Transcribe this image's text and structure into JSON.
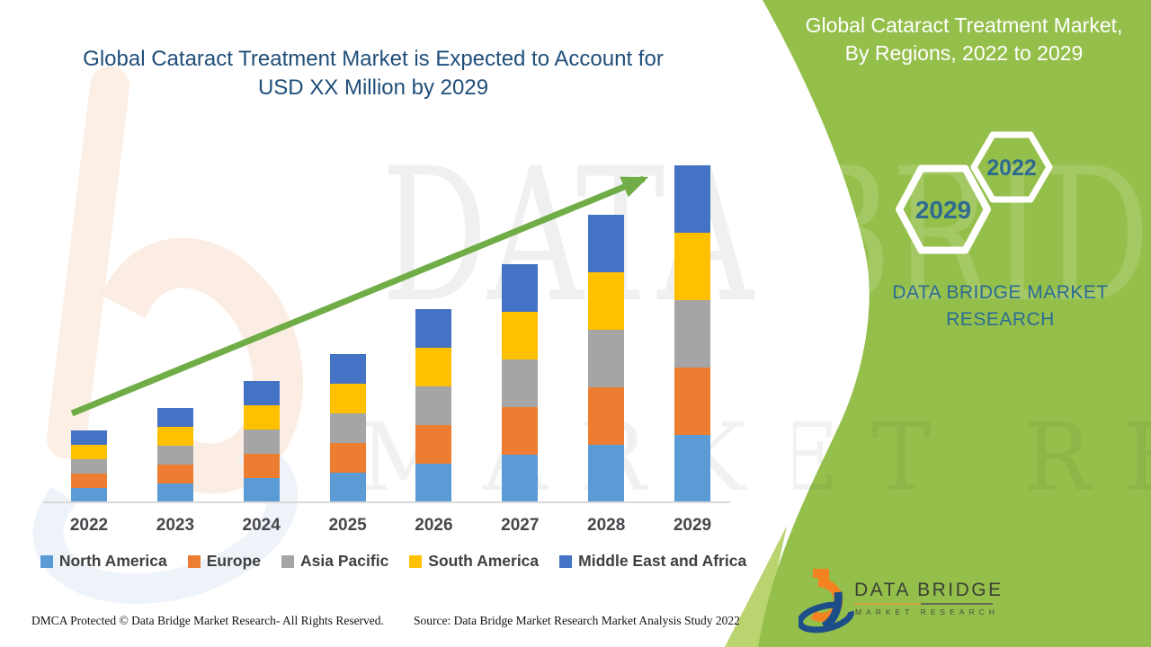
{
  "title": {
    "line1": "Global Cataract Treatment Market is Expected to Account for",
    "line2": "USD XX Million by 2029"
  },
  "panel": {
    "bg_color": "#95BF4B",
    "bg_color_light": "#BAD470",
    "heading": {
      "line1": "Global Cataract Treatment Market,",
      "line2": "By Regions, 2022 to 2029"
    },
    "hexagons": [
      {
        "label": "2029"
      },
      {
        "label": "2022"
      }
    ],
    "brand": {
      "line1": "DATA BRIDGE MARKET",
      "line2": "RESEARCH"
    },
    "logo": {
      "name": "DATA BRIDGE",
      "sub": "MARKET RESEARCH",
      "orange": "#F58220",
      "blue": "#1D4E89"
    }
  },
  "watermarks": {
    "line1": "DATA BRIDGE",
    "line2": "MARKET RESEARCH"
  },
  "footer": {
    "left": "DMCA Protected © Data Bridge Market Research- All Rights Reserved.",
    "source": "Source: Data Bridge Market Research Market Analysis Study 2022"
  },
  "chart_data": {
    "type": "bar",
    "stacked": true,
    "title": "Global Cataract Treatment Market is Expected to Account for USD XX Million by 2029",
    "categories": [
      "2022",
      "2023",
      "2024",
      "2025",
      "2026",
      "2027",
      "2028",
      "2029"
    ],
    "series": [
      {
        "name": "North America",
        "color": "#5B9BD5",
        "values": [
          16,
          21,
          27,
          33,
          43,
          53,
          64,
          75
        ]
      },
      {
        "name": "Europe",
        "color": "#ED7D31",
        "values": [
          16,
          21,
          27,
          33,
          43,
          53,
          64,
          75
        ]
      },
      {
        "name": "Asia Pacific",
        "color": "#A5A5A5",
        "values": [
          16,
          21,
          27,
          33,
          43,
          53,
          64,
          75
        ]
      },
      {
        "name": "South America",
        "color": "#FFC000",
        "values": [
          16,
          21,
          27,
          33,
          43,
          53,
          64,
          75
        ]
      },
      {
        "name": "Middle East and Africa",
        "color": "#4472C4",
        "values": [
          16,
          21,
          27,
          33,
          43,
          53,
          64,
          75
        ]
      }
    ],
    "totals_estimate": [
      80,
      105,
      135,
      165,
      215,
      265,
      320,
      375
    ],
    "value_axis": {
      "visible": false,
      "note": "No y-axis shown; segment values are relative estimates in unlabeled 'USD XX Million' units"
    },
    "category_axis": {
      "visible": true,
      "line_color": "#D9D9D9"
    },
    "grid": false,
    "legend_position": "bottom",
    "annotations": [
      {
        "type": "trend-arrow",
        "color": "#70AD47",
        "from_category": "2022",
        "to_category": "2029"
      }
    ]
  },
  "colors": {
    "title_text": "#1F4E79",
    "axis_label_text": "#45474B",
    "legend_text": "#404040",
    "panel_text_teal": "#2B6C94",
    "arrow_green": "#70AD47"
  }
}
